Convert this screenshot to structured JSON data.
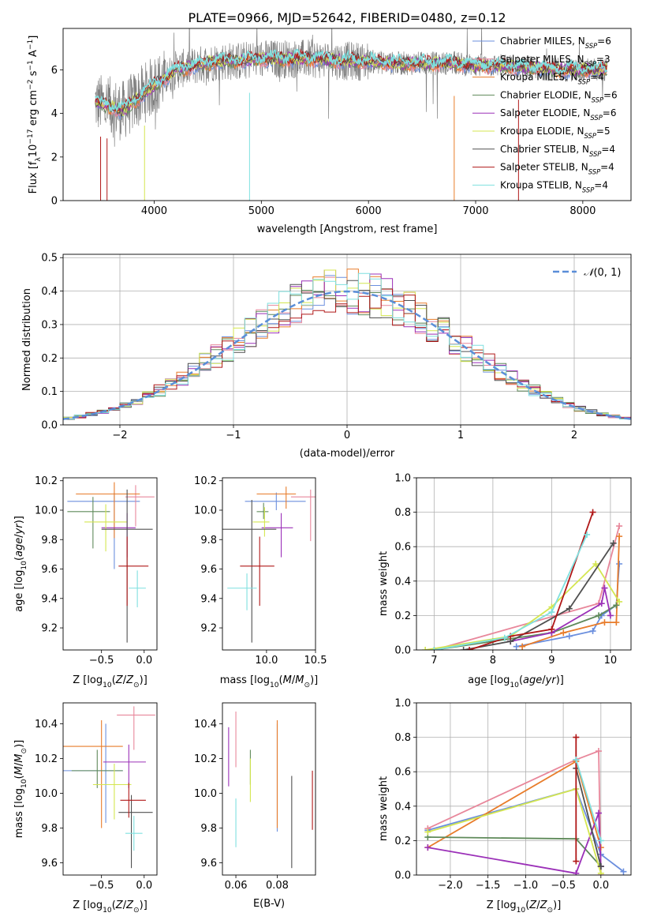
{
  "title": "PLATE=0966, MJD=52642, FIBERID=0480, z=0.12",
  "colors": {
    "chabrier_miles": "#6b8fde",
    "salpeter_miles": "#e8879b",
    "kroupa_miles": "#e87c2a",
    "chabrier_elodie": "#5f8a5a",
    "salpeter_elodie": "#9b30b8",
    "kroupa_elodie": "#d4e650",
    "chabrier_stelib": "#505050",
    "salpeter_stelib": "#b01818",
    "kroupa_stelib": "#7fe0df",
    "data": "#808080"
  },
  "chart_data": [
    {
      "type": "line",
      "id": "spectrum",
      "xlabel": "wavelength [Angstrom, rest frame]",
      "ylabel": "Flux [fλ10⁻¹⁷ erg cm⁻² s⁻¹ A⁻¹]",
      "xlim": [
        3150,
        8450
      ],
      "ylim": [
        0,
        7.9
      ],
      "xticks": [
        4000,
        5000,
        6000,
        7000,
        8000
      ],
      "yticks": [
        0,
        2,
        4,
        6
      ],
      "legend": [
        "Chabrier MILES, N_SSP=6",
        "Salpeter MILES, N_SSP=3",
        "Kroupa MILES, N_SSP=4",
        "Chabrier ELODIE, N_SSP=6",
        "Salpeter ELODIE, N_SSP=6",
        "Kroupa ELODIE, N_SSP=5",
        "Chabrier STELIB, N_SSP=4",
        "Salpeter STELIB, N_SSP=4",
        "Kroupa STELIB, N_SSP=4"
      ],
      "legend_placement": "right",
      "continuum": {
        "x": [
          3450,
          3600,
          3700,
          3800,
          3900,
          4000,
          4100,
          4200,
          4400,
          4600,
          4800,
          5000,
          5200,
          5500,
          5800,
          6000,
          6200,
          6500,
          6800,
          7000,
          7200,
          7500,
          7800,
          8000,
          8200
        ],
        "y": [
          4.5,
          4.3,
          4.1,
          4.5,
          4.9,
          5.3,
          5.6,
          6.0,
          6.2,
          6.4,
          6.4,
          6.5,
          6.5,
          6.5,
          6.4,
          6.4,
          6.3,
          6.3,
          6.3,
          6.2,
          6.2,
          6.1,
          6.0,
          6.0,
          6.0
        ]
      }
    },
    {
      "type": "histogram",
      "id": "residuals",
      "xlabel": "(data-model)/error",
      "ylabel": "Normed distribution",
      "xlim": [
        -2.5,
        2.5
      ],
      "ylim": [
        0,
        0.51
      ],
      "xticks": [
        -2,
        -1,
        0,
        1,
        2
      ],
      "yticks": [
        0.0,
        0.1,
        0.2,
        0.3,
        0.4,
        0.5
      ],
      "legend": [
        "N(0,1)"
      ],
      "legend_placement": "top-right",
      "grid": true
    },
    {
      "type": "scatter",
      "id": "age_vs_Z",
      "xlabel": "Z [log10(Z/Z⊙)]",
      "ylabel": "age  [log10(age/yr)]",
      "xlim": [
        -0.95,
        0.15
      ],
      "ylim": [
        9.05,
        10.22
      ],
      "xticks": [
        -0.5,
        0.0
      ],
      "yticks": [
        9.2,
        9.4,
        9.6,
        9.8,
        10.0,
        10.2
      ],
      "points": [
        {
          "model": "chabrier_miles",
          "x": -0.35,
          "xerr": [
            0.55,
            0.3
          ],
          "y": 10.06,
          "yerr": [
            0.46,
            0.06
          ]
        },
        {
          "model": "salpeter_miles",
          "x": -0.1,
          "xerr": [
            0.12,
            0.22
          ],
          "y": 10.09,
          "yerr": [
            0.2,
            0.08
          ]
        },
        {
          "model": "kroupa_miles",
          "x": -0.35,
          "xerr": [
            0.45,
            0.3
          ],
          "y": 10.11,
          "yerr": [
            0.3,
            0.08
          ]
        },
        {
          "model": "chabrier_elodie",
          "x": -0.6,
          "xerr": [
            0.3,
            0.2
          ],
          "y": 9.99,
          "yerr": [
            0.25,
            0.1
          ]
        },
        {
          "model": "salpeter_elodie",
          "x": -0.2,
          "xerr": [
            0.3,
            0.1
          ],
          "y": 9.88,
          "yerr": [
            0.2,
            0.1
          ]
        },
        {
          "model": "kroupa_elodie",
          "x": -0.45,
          "xerr": [
            0.25,
            0.25
          ],
          "y": 9.92,
          "yerr": [
            0.2,
            0.12
          ]
        },
        {
          "model": "chabrier_stelib",
          "x": -0.2,
          "xerr": [
            0.3,
            0.3
          ],
          "y": 9.87,
          "yerr": [
            0.77,
            0.27
          ]
        },
        {
          "model": "salpeter_stelib",
          "x": -0.2,
          "xerr": [
            0.1,
            0.25
          ],
          "y": 9.62,
          "yerr": [
            0.27,
            0.2
          ]
        },
        {
          "model": "kroupa_stelib",
          "x": -0.08,
          "xerr": [
            0.1,
            0.1
          ],
          "y": 9.47,
          "yerr": [
            0.13,
            0.12
          ]
        }
      ]
    },
    {
      "type": "scatter",
      "id": "age_vs_mass",
      "xlabel": "mass [log10(M/M⊙)]",
      "ylabel": "",
      "xlim": [
        9.55,
        10.5
      ],
      "ylim": [
        9.05,
        10.22
      ],
      "xticks": [
        10.0,
        10.5
      ],
      "yticks": [
        9.2,
        9.4,
        9.6,
        9.8,
        10.0,
        10.2
      ],
      "points": [
        {
          "model": "chabrier_miles",
          "x": 10.1,
          "xerr": [
            0.32,
            0.3
          ],
          "y": 10.06,
          "yerr": [
            0.06,
            0.06
          ]
        },
        {
          "model": "salpeter_miles",
          "x": 10.45,
          "xerr": [
            0.2,
            0.05
          ],
          "y": 10.09,
          "yerr": [
            0.3,
            0.05
          ]
        },
        {
          "model": "kroupa_miles",
          "x": 10.2,
          "xerr": [
            0.3,
            0.1
          ],
          "y": 10.11,
          "yerr": [
            0.1,
            0.05
          ]
        },
        {
          "model": "chabrier_elodie",
          "x": 9.97,
          "xerr": [
            0.07,
            0.05
          ],
          "y": 9.99,
          "yerr": [
            0.05,
            0.06
          ]
        },
        {
          "model": "salpeter_elodie",
          "x": 10.15,
          "xerr": [
            0.2,
            0.12
          ],
          "y": 9.88,
          "yerr": [
            0.2,
            0.1
          ]
        },
        {
          "model": "kroupa_elodie",
          "x": 9.98,
          "xerr": [
            0.12,
            0.05
          ],
          "y": 9.92,
          "yerr": [
            0.1,
            0.1
          ]
        },
        {
          "model": "chabrier_stelib",
          "x": 9.85,
          "xerr": [
            0.3,
            0.25
          ],
          "y": 9.87,
          "yerr": [
            0.77,
            0.2
          ]
        },
        {
          "model": "salpeter_stelib",
          "x": 9.93,
          "xerr": [
            0.2,
            0.15
          ],
          "y": 9.62,
          "yerr": [
            0.27,
            0.2
          ]
        },
        {
          "model": "kroupa_stelib",
          "x": 9.8,
          "xerr": [
            0.2,
            0.1
          ],
          "y": 9.47,
          "yerr": [
            0.15,
            0.1
          ]
        }
      ]
    },
    {
      "type": "line",
      "id": "weight_vs_age",
      "xlabel": "age  [log10(age/yr)]",
      "ylabel": "mass weight",
      "xlim": [
        6.7,
        10.35
      ],
      "ylim": [
        0,
        1.0
      ],
      "xticks": [
        7,
        8,
        9,
        10
      ],
      "yticks": [
        0.0,
        0.2,
        0.4,
        0.6,
        0.8,
        1.0
      ],
      "grid": true,
      "series": [
        {
          "model": "chabrier_miles",
          "x": [
            8.4,
            9.3,
            9.7,
            9.85,
            10.1,
            10.15
          ],
          "y": [
            0.02,
            0.08,
            0.11,
            0.2,
            0.26,
            0.5
          ]
        },
        {
          "model": "salpeter_miles",
          "x": [
            7.0,
            9.8,
            10.15
          ],
          "y": [
            0.0,
            0.27,
            0.72
          ]
        },
        {
          "model": "kroupa_miles",
          "x": [
            8.5,
            9.2,
            9.9,
            10.1,
            10.15
          ],
          "y": [
            0.02,
            0.1,
            0.16,
            0.16,
            0.66
          ]
        },
        {
          "model": "chabrier_elodie",
          "x": [
            7.0,
            8.0,
            9.0,
            9.8,
            10.1
          ],
          "y": [
            0.0,
            0.05,
            0.1,
            0.2,
            0.26
          ]
        },
        {
          "model": "salpeter_elodie",
          "x": [
            8.3,
            9.0,
            9.85,
            9.9,
            10.0
          ],
          "y": [
            0.05,
            0.1,
            0.27,
            0.36,
            0.2
          ]
        },
        {
          "model": "kroupa_elodie",
          "x": [
            6.85,
            8.3,
            9.0,
            9.75,
            10.15
          ],
          "y": [
            0.0,
            0.08,
            0.25,
            0.5,
            0.28
          ]
        },
        {
          "model": "chabrier_stelib",
          "x": [
            7.5,
            8.3,
            9.3,
            10.05
          ],
          "y": [
            0.0,
            0.05,
            0.24,
            0.62
          ]
        },
        {
          "model": "salpeter_stelib",
          "x": [
            7.6,
            8.3,
            9.0,
            9.7
          ],
          "y": [
            0.0,
            0.08,
            0.12,
            0.8
          ]
        },
        {
          "model": "kroupa_stelib",
          "x": [
            7.0,
            8.2,
            9.0,
            9.6
          ],
          "y": [
            0.0,
            0.07,
            0.22,
            0.67
          ]
        }
      ]
    },
    {
      "type": "scatter",
      "id": "mass_vs_Z",
      "xlabel": "Z [log10(Z/Z⊙)]",
      "ylabel": "mass [log10(M/M⊙)]",
      "xlim": [
        -0.95,
        0.15
      ],
      "ylim": [
        9.53,
        10.52
      ],
      "xticks": [
        -0.5,
        0.0
      ],
      "yticks": [
        9.6,
        9.8,
        10.0,
        10.2,
        10.4
      ],
      "points": [
        {
          "model": "chabrier_miles",
          "x": -0.45,
          "xerr": [
            0.5,
            0.2
          ],
          "y": 10.13,
          "yerr": [
            0.3,
            0.27
          ]
        },
        {
          "model": "salpeter_miles",
          "x": -0.12,
          "xerr": [
            0.2,
            0.25
          ],
          "y": 10.45,
          "yerr": [
            0.2,
            0.05
          ]
        },
        {
          "model": "kroupa_miles",
          "x": -0.5,
          "xerr": [
            0.45,
            0.25
          ],
          "y": 10.27,
          "yerr": [
            0.47,
            0.15
          ]
        },
        {
          "model": "chabrier_elodie",
          "x": -0.55,
          "xerr": [
            0.3,
            0.3
          ],
          "y": 10.13,
          "yerr": [
            0.1,
            0.12
          ]
        },
        {
          "model": "salpeter_elodie",
          "x": -0.18,
          "xerr": [
            0.3,
            0.2
          ],
          "y": 10.18,
          "yerr": [
            0.15,
            0.1
          ]
        },
        {
          "model": "kroupa_elodie",
          "x": -0.35,
          "xerr": [
            0.25,
            0.2
          ],
          "y": 10.05,
          "yerr": [
            0.2,
            0.12
          ]
        },
        {
          "model": "chabrier_stelib",
          "x": -0.15,
          "xerr": [
            0.15,
            0.25
          ],
          "y": 9.89,
          "yerr": [
            0.32,
            0.1
          ]
        },
        {
          "model": "salpeter_stelib",
          "x": -0.18,
          "xerr": [
            0.1,
            0.2
          ],
          "y": 9.96,
          "yerr": [
            0.1,
            0.1
          ]
        },
        {
          "model": "kroupa_stelib",
          "x": -0.12,
          "xerr": [
            0.1,
            0.1
          ],
          "y": 9.77,
          "yerr": [
            0.1,
            0.1
          ]
        }
      ]
    },
    {
      "type": "scatter",
      "id": "mass_vs_ebv",
      "xlabel": "E(B-V)",
      "ylabel": "",
      "xlim": [
        0.0535,
        0.0985
      ],
      "ylim": [
        9.53,
        10.52
      ],
      "xticks": [
        0.06,
        0.08
      ],
      "yticks": [
        9.6,
        9.8,
        10.0,
        10.2,
        10.4
      ],
      "points": [
        {
          "model": "chabrier_miles",
          "x": 0.08,
          "y": 10.13,
          "yerr": [
            0.35,
            0.27
          ]
        },
        {
          "model": "salpeter_miles",
          "x": 0.06,
          "y": 10.45,
          "yerr": [
            0.3,
            0.02
          ]
        },
        {
          "model": "kroupa_miles",
          "x": 0.08,
          "y": 10.27,
          "yerr": [
            0.47,
            0.15
          ]
        },
        {
          "model": "chabrier_elodie",
          "x": 0.067,
          "y": 10.13,
          "yerr": [
            0.08,
            0.12
          ]
        },
        {
          "model": "salpeter_elodie",
          "x": 0.0565,
          "y": 10.18,
          "yerr": [
            0.14,
            0.2
          ]
        },
        {
          "model": "kroupa_elodie",
          "x": 0.067,
          "y": 10.05,
          "yerr": [
            0.1,
            0.15
          ]
        },
        {
          "model": "chabrier_stelib",
          "x": 0.087,
          "y": 9.89,
          "yerr": [
            0.32,
            0.21
          ]
        },
        {
          "model": "salpeter_stelib",
          "x": 0.097,
          "y": 9.96,
          "yerr": [
            0.17,
            0.17
          ]
        },
        {
          "model": "kroupa_stelib",
          "x": 0.06,
          "y": 9.77,
          "yerr": [
            0.08,
            0.2
          ]
        }
      ]
    },
    {
      "type": "line",
      "id": "weight_vs_Z",
      "xlabel": "Z [log10(Z/Z⊙)]",
      "ylabel": "mass weight",
      "xlim": [
        -2.45,
        0.4
      ],
      "ylim": [
        0,
        1.0
      ],
      "xticks": [
        -2.0,
        -1.5,
        -1.0,
        -0.5,
        0.0
      ],
      "yticks": [
        0.0,
        0.2,
        0.4,
        0.6,
        0.8,
        1.0
      ],
      "grid": true,
      "series": [
        {
          "model": "chabrier_miles",
          "x": [
            -2.3,
            -0.33,
            0.0,
            0.3
          ],
          "y": [
            0.26,
            0.5,
            0.12,
            0.02
          ]
        },
        {
          "model": "salpeter_miles",
          "x": [
            -2.3,
            -0.33,
            -0.03,
            0.0
          ],
          "y": [
            0.27,
            0.67,
            0.72,
            0.0
          ]
        },
        {
          "model": "kroupa_miles",
          "x": [
            -2.3,
            -0.33,
            0.0
          ],
          "y": [
            0.16,
            0.66,
            0.16
          ]
        },
        {
          "model": "chabrier_elodie",
          "x": [
            -2.3,
            -0.33,
            0.0
          ],
          "y": [
            0.22,
            0.21,
            0.05
          ]
        },
        {
          "model": "salpeter_elodie",
          "x": [
            -2.3,
            -0.33,
            -0.03,
            0.0
          ],
          "y": [
            0.16,
            0.01,
            0.36,
            0.05
          ]
        },
        {
          "model": "kroupa_elodie",
          "x": [
            -2.3,
            -0.33,
            0.0
          ],
          "y": [
            0.25,
            0.5,
            0.01
          ]
        },
        {
          "model": "chabrier_stelib",
          "x": [
            -0.33,
            0.0
          ],
          "y": [
            0.62,
            0.05
          ]
        },
        {
          "model": "salpeter_stelib",
          "x": [
            -0.33,
            -0.33
          ],
          "y": [
            0.08,
            0.8
          ]
        },
        {
          "model": "kroupa_stelib",
          "x": [
            -0.33,
            0.0
          ],
          "y": [
            0.67,
            0.2
          ]
        }
      ]
    }
  ]
}
